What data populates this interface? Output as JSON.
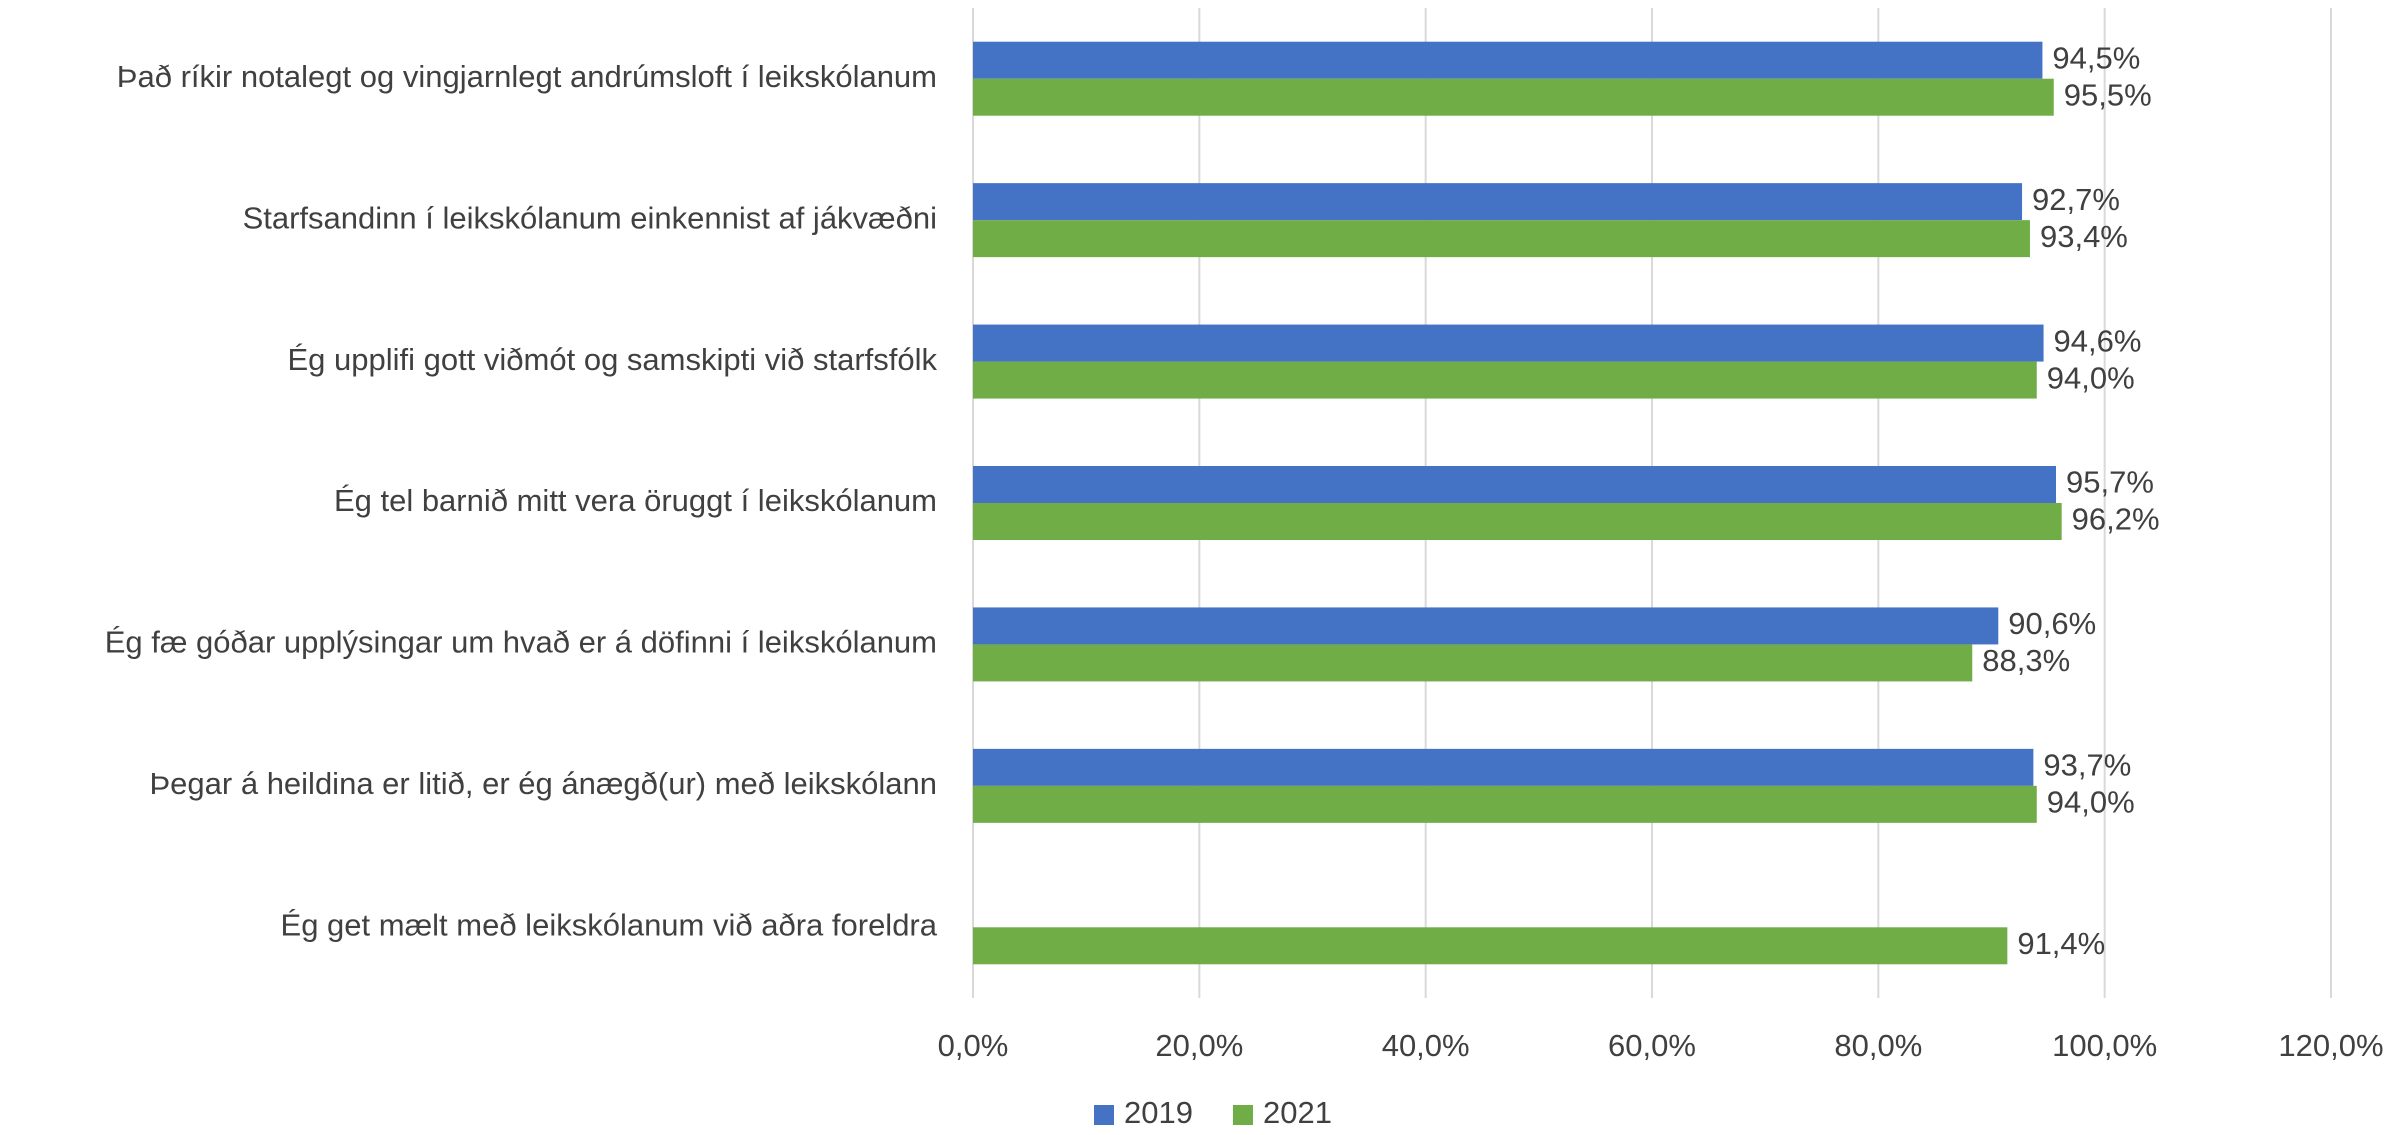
{
  "chart_data": {
    "type": "bar",
    "orientation": "horizontal",
    "categories": [
      "Það ríkir notalegt og vingjarnlegt andrúmsloft í leikskólanum",
      "Starfsandinn í leikskólanum einkennist af jákvæðni",
      "Ég upplifi gott viðmót og samskipti við starfsfólk",
      "Ég tel barnið mitt vera öruggt í leikskólanum",
      "Ég fæ góðar upplýsingar um hvað er á döfinni í leikskólanum",
      "Þegar á heildina er litið, er ég ánægð(ur) með leikskólann",
      "Ég get mælt með leikskólanum við aðra foreldra"
    ],
    "series": [
      {
        "name": "2019",
        "color": "#4472c4",
        "values": [
          94.5,
          92.7,
          94.6,
          95.7,
          90.6,
          93.7,
          null
        ],
        "value_labels": [
          "94,5%",
          "92,7%",
          "94,6%",
          "95,7%",
          "90,6%",
          "93,7%",
          null
        ]
      },
      {
        "name": "2021",
        "color": "#70ad47",
        "values": [
          95.5,
          93.4,
          94.0,
          96.2,
          88.3,
          94.0,
          91.4
        ],
        "value_labels": [
          "95,5%",
          "93,4%",
          "94,0%",
          "96,2%",
          "88,3%",
          "94,0%",
          "91,4%"
        ]
      }
    ],
    "xlim": [
      0,
      120
    ],
    "xticks": [
      {
        "value": 0,
        "label": "0,0%"
      },
      {
        "value": 20,
        "label": "20,0%"
      },
      {
        "value": 40,
        "label": "40,0%"
      },
      {
        "value": 60,
        "label": "60,0%"
      },
      {
        "value": 80,
        "label": "80,0%"
      },
      {
        "value": 100,
        "label": "100,0%"
      },
      {
        "value": 120,
        "label": "120,0%"
      }
    ],
    "grid": true,
    "legend": "bottom"
  }
}
